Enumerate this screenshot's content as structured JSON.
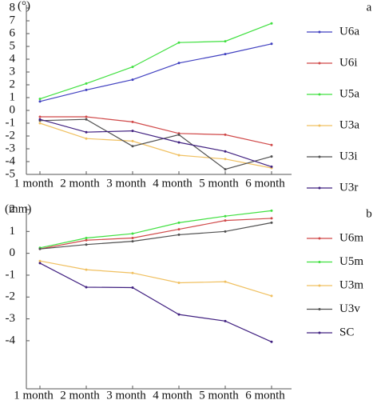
{
  "chart_data": [
    {
      "type": "line",
      "panel_label": "a",
      "ylabel": "(°)",
      "categories": [
        "1 month",
        "2 month",
        "3 month",
        "4 month",
        "5 month",
        "6 month"
      ],
      "ylim": [
        -5,
        8
      ],
      "yticks": [
        -5,
        -4,
        -3,
        -2,
        -1,
        0,
        1,
        2,
        3,
        4,
        5,
        6,
        7,
        8
      ],
      "series": [
        {
          "name": "U6a",
          "color": "#4040c0",
          "values": [
            0.7,
            1.6,
            2.4,
            3.7,
            4.4,
            5.2
          ]
        },
        {
          "name": "U6i",
          "color": "#d04848",
          "values": [
            -0.5,
            -0.5,
            -0.9,
            -1.8,
            -1.9,
            -2.7
          ]
        },
        {
          "name": "U5a",
          "color": "#40e040",
          "values": [
            0.9,
            2.1,
            3.4,
            5.3,
            5.4,
            6.8
          ]
        },
        {
          "name": "U3a",
          "color": "#f0c060",
          "values": [
            -1.0,
            -2.2,
            -2.4,
            -3.5,
            -3.8,
            -4.5
          ]
        },
        {
          "name": "U3i",
          "color": "#505050",
          "values": [
            -0.8,
            -0.7,
            -2.8,
            -1.9,
            -4.6,
            -3.6
          ]
        },
        {
          "name": "U3r",
          "color": "#402080",
          "values": [
            -0.7,
            -1.7,
            -1.6,
            -2.5,
            -3.2,
            -4.4
          ]
        }
      ]
    },
    {
      "type": "line",
      "panel_label": "b",
      "ylabel": "(mm)",
      "categories": [
        "1 month",
        "2 month",
        "3 month",
        "4 month",
        "5 month",
        "6 month"
      ],
      "ylim": [
        -6.2,
        2
      ],
      "yticks": [
        -4,
        -3,
        -2,
        -1,
        0,
        1,
        2
      ],
      "series": [
        {
          "name": "U6m",
          "color": "#d04848",
          "values": [
            0.2,
            0.6,
            0.7,
            1.1,
            1.5,
            1.6
          ]
        },
        {
          "name": "U5m",
          "color": "#40e040",
          "values": [
            0.25,
            0.7,
            0.9,
            1.4,
            1.7,
            1.95
          ]
        },
        {
          "name": "U3m",
          "color": "#f0c060",
          "values": [
            -0.35,
            -0.75,
            -0.9,
            -1.35,
            -1.3,
            -1.95
          ]
        },
        {
          "name": "U3v",
          "color": "#505050",
          "values": [
            0.2,
            0.4,
            0.55,
            0.85,
            1.0,
            1.4
          ]
        },
        {
          "name": "SC",
          "color": "#402080",
          "values": [
            -0.45,
            -1.55,
            -1.57,
            -2.8,
            -3.1,
            -4.05
          ]
        }
      ]
    }
  ]
}
